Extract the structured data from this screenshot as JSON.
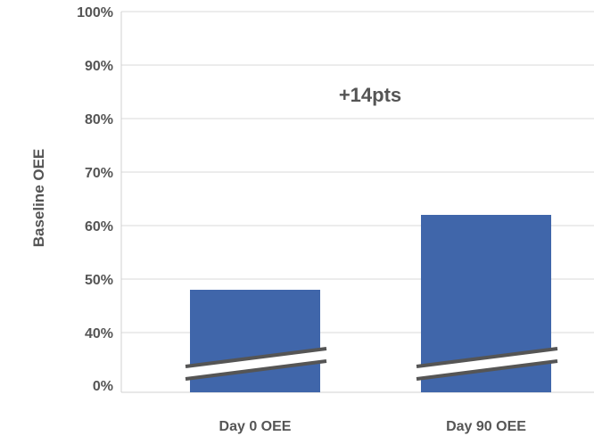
{
  "chart_data": {
    "type": "bar",
    "categories": [
      "Day 0 OEE",
      "Day 90 OEE"
    ],
    "values": [
      48,
      62
    ],
    "ylabel": "Baseline OEE",
    "xlabel": "",
    "title": "",
    "ylim": [
      0,
      100
    ],
    "y_ticks": [
      "0%",
      "40%",
      "50%",
      "60%",
      "70%",
      "80%",
      "90%",
      "100%"
    ],
    "y_tick_values": [
      0,
      40,
      50,
      60,
      70,
      80,
      90,
      100
    ],
    "axis_break": true,
    "grid": true,
    "annotation": "+14pts",
    "bar_color": "#4066AA",
    "break_color": "#555555"
  }
}
